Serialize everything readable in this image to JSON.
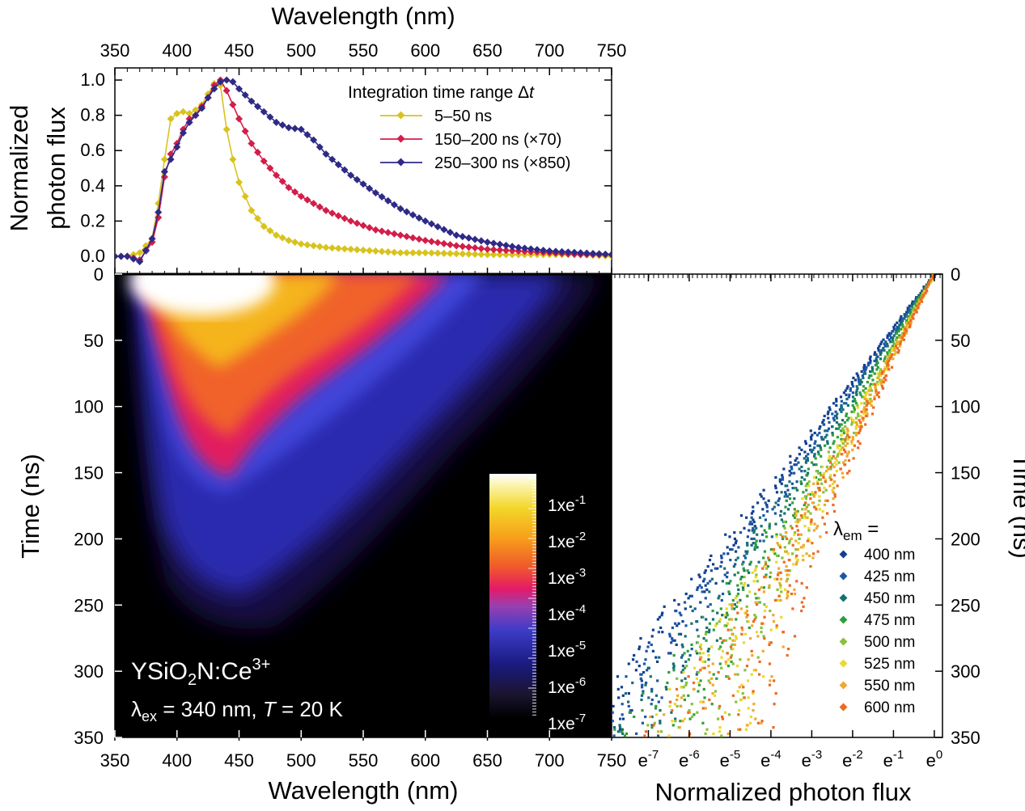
{
  "figure": {
    "top_panel": {
      "top_axis_label": "Wavelength (nm)",
      "ylabel_line1": "Normalized",
      "ylabel_line2": "photon flux",
      "xticks": [
        "350",
        "400",
        "450",
        "500",
        "550",
        "600",
        "650",
        "700",
        "750"
      ],
      "yticks": [
        "0.0",
        "0.2",
        "0.4",
        "0.6",
        "0.8",
        "1.0"
      ],
      "legend_title": "Integration time range Δ",
      "legend_title_symbol": "t",
      "legend_entries": [
        "5–50 ns",
        "150–200 ns (×70)",
        "250–300 ns (×850)"
      ]
    },
    "map_panel": {
      "xlabel": "Wavelength (nm)",
      "ylabel": "Time (ns)",
      "xticks": [
        "350",
        "400",
        "450",
        "500",
        "550",
        "600",
        "650",
        "700",
        "750"
      ],
      "yticks": [
        "0",
        "50",
        "100",
        "150",
        "200",
        "250",
        "300",
        "350"
      ],
      "sample_label_main": "YSiO",
      "sample_label_sub": "2",
      "sample_label_rest": "N:Ce",
      "sample_label_sup": "3+",
      "cond_lambda": "λ",
      "cond_sub": "ex",
      "cond_eq": " = 340 nm, ",
      "cond_T": "T",
      "cond_rest": " = 20 K",
      "colorbar_labels": [
        "1xe-1",
        "1xe-2",
        "1xe-3",
        "1xe-4",
        "1xe-5",
        "1xe-6",
        "1xe-7"
      ],
      "colorbar_base": "1xe",
      "colorbar_exponents": [
        "-1",
        "-2",
        "-3",
        "-4",
        "-5",
        "-6",
        "-7"
      ]
    },
    "right_panel": {
      "xlabel": "Normalized photon flux",
      "ylabel": "Time (ns)",
      "xtick_base": "e",
      "xtick_exponents": [
        "-7",
        "-6",
        "-5",
        "-4",
        "-3",
        "-2",
        "-1",
        "0"
      ],
      "yticks": [
        "0",
        "50",
        "100",
        "150",
        "200",
        "250",
        "300",
        "350"
      ],
      "legend_lambda": "λ",
      "legend_sub": "em",
      "legend_eq": " =",
      "legend_entries": [
        "400 nm",
        "425 nm",
        "450 nm",
        "475 nm",
        "500 nm",
        "525 nm",
        "550 nm",
        "600 nm"
      ]
    }
  },
  "colors": {
    "series": [
      "#d8c31e",
      "#d21e4a",
      "#2e2a86"
    ],
    "decay": [
      "#123f8f",
      "#1d56a6",
      "#167070",
      "#2f9e3c",
      "#86c23a",
      "#ecd92a",
      "#f0a830",
      "#ec6a22"
    ]
  },
  "chart_data": [
    {
      "type": "line",
      "xlabel": "Wavelength (nm)",
      "ylabel": "Normalized photon flux",
      "xlim": [
        350,
        750
      ],
      "ylim": [
        -0.04,
        1.05
      ],
      "legend_title": "Integration time range Δt",
      "legend_position": "top-right",
      "x": [
        350,
        360,
        370,
        380,
        385,
        390,
        395,
        400,
        405,
        410,
        415,
        420,
        425,
        430,
        435,
        440,
        445,
        450,
        460,
        470,
        480,
        490,
        500,
        510,
        520,
        540,
        560,
        580,
        600,
        625,
        650,
        675,
        700,
        725,
        750
      ],
      "series": [
        {
          "name": "5–50 ns",
          "color": "#d8c31e",
          "values": [
            0.0,
            0.0,
            0.02,
            0.1,
            0.3,
            0.55,
            0.78,
            0.81,
            0.82,
            0.81,
            0.83,
            0.86,
            0.92,
            0.98,
            0.97,
            0.72,
            0.55,
            0.42,
            0.26,
            0.17,
            0.12,
            0.09,
            0.07,
            0.06,
            0.05,
            0.04,
            0.03,
            0.02,
            0.02,
            0.015,
            0.01,
            0.01,
            0.01,
            0.01,
            0.0
          ]
        },
        {
          "name": "150–200 ns (×70)",
          "color": "#d21e4a",
          "values": [
            0.0,
            0.0,
            -0.02,
            0.08,
            0.22,
            0.45,
            0.58,
            0.64,
            0.72,
            0.78,
            0.8,
            0.85,
            0.9,
            0.97,
            1.0,
            0.94,
            0.86,
            0.78,
            0.64,
            0.54,
            0.46,
            0.39,
            0.34,
            0.3,
            0.26,
            0.2,
            0.15,
            0.12,
            0.09,
            0.06,
            0.04,
            0.03,
            0.02,
            0.01,
            0.01
          ]
        },
        {
          "name": "250–300 ns (×850)",
          "color": "#2e2a86",
          "values": [
            0.0,
            0.0,
            -0.03,
            0.1,
            0.25,
            0.48,
            0.55,
            0.62,
            0.7,
            0.76,
            0.8,
            0.84,
            0.9,
            0.95,
            0.99,
            1.0,
            0.99,
            0.95,
            0.88,
            0.82,
            0.76,
            0.73,
            0.72,
            0.66,
            0.58,
            0.46,
            0.36,
            0.27,
            0.2,
            0.12,
            0.08,
            0.05,
            0.03,
            0.02,
            0.01
          ]
        }
      ]
    },
    {
      "type": "heatmap",
      "xlabel": "Wavelength (nm)",
      "ylabel": "Time (ns)",
      "xlim": [
        350,
        750
      ],
      "ylim": [
        350,
        0
      ],
      "colorbar_label_values": [
        0.1,
        0.01,
        0.001,
        0.0001,
        1e-05,
        1e-06,
        1e-07
      ],
      "peak_wavelength_nm": 437,
      "emission_onset_nm": 370,
      "decay_widening": "emission narrows toward ~440 nm at long times"
    },
    {
      "type": "scatter",
      "xlabel": "Normalized photon flux",
      "ylabel": "Time (ns)",
      "x_scale": "natural log",
      "xlim": [
        -7.9,
        0.2
      ],
      "ylim": [
        350,
        0
      ],
      "legend_title": "λem =",
      "legend_position": "right",
      "series": [
        {
          "name": "400 nm",
          "color": "#123f8f",
          "ln_flux_at_0ns": 0,
          "ln_flux_per_ns": -0.0245
        },
        {
          "name": "425 nm",
          "color": "#1d56a6",
          "ln_flux_at_0ns": 0,
          "ln_flux_per_ns": -0.0228
        },
        {
          "name": "450 nm",
          "color": "#167070",
          "ln_flux_at_0ns": 0,
          "ln_flux_per_ns": -0.0215
        },
        {
          "name": "475 nm",
          "color": "#2f9e3c",
          "ln_flux_at_0ns": 0,
          "ln_flux_per_ns": -0.0195
        },
        {
          "name": "500 nm",
          "color": "#86c23a",
          "ln_flux_at_0ns": 0,
          "ln_flux_per_ns": -0.0178
        },
        {
          "name": "525 nm",
          "color": "#ecd92a",
          "ln_flux_at_0ns": 0,
          "ln_flux_per_ns": -0.0172
        },
        {
          "name": "550 nm",
          "color": "#f0a830",
          "ln_flux_at_0ns": 0,
          "ln_flux_per_ns": -0.0166
        },
        {
          "name": "600 nm",
          "color": "#ec6a22",
          "ln_flux_at_0ns": 0,
          "ln_flux_per_ns": -0.016
        }
      ]
    }
  ]
}
